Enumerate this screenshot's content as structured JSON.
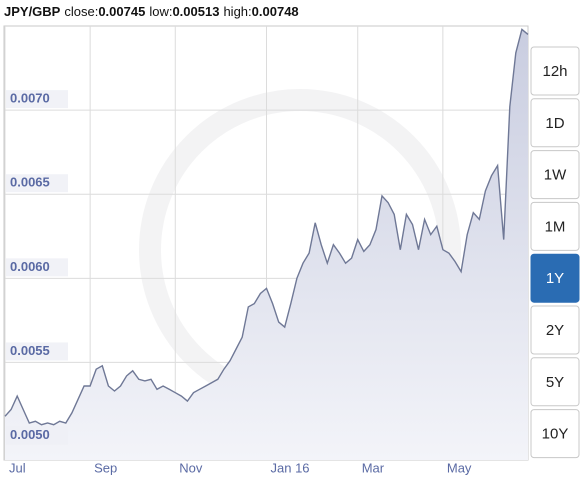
{
  "chart_data": {
    "type": "area",
    "title": "JPY/GBP",
    "stats": [
      {
        "label": "close:",
        "value": 0.00745
      },
      {
        "label": "low:",
        "value": 0.00513
      },
      {
        "label": "high:",
        "value": 0.00748
      }
    ],
    "categories": [
      "Jul",
      null,
      null,
      null,
      null,
      null,
      null,
      null,
      null,
      null,
      null,
      null,
      null,
      null,
      "Sep",
      null,
      null,
      null,
      null,
      null,
      null,
      null,
      null,
      null,
      null,
      null,
      null,
      null,
      "Nov",
      null,
      null,
      null,
      null,
      null,
      null,
      null,
      null,
      null,
      null,
      null,
      null,
      null,
      null,
      "Jan 16",
      null,
      null,
      null,
      null,
      null,
      null,
      null,
      null,
      null,
      null,
      null,
      null,
      null,
      null,
      "Mar",
      null,
      null,
      null,
      null,
      null,
      null,
      null,
      null,
      null,
      null,
      null,
      null,
      null,
      "May",
      null,
      null,
      null,
      null,
      null,
      null,
      null,
      null,
      null,
      null,
      null,
      null,
      null,
      null
    ],
    "values": [
      0.00518,
      0.00522,
      0.0053,
      0.00522,
      0.00514,
      0.00515,
      0.00513,
      0.00514,
      0.00513,
      0.00515,
      0.00514,
      0.0052,
      0.00528,
      0.00536,
      0.00536,
      0.00546,
      0.00548,
      0.00536,
      0.00533,
      0.00536,
      0.00542,
      0.00545,
      0.0054,
      0.00539,
      0.0054,
      0.00534,
      0.00536,
      0.00534,
      0.00532,
      0.0053,
      0.00527,
      0.00532,
      0.00534,
      0.00536,
      0.00538,
      0.0054,
      0.00546,
      0.00551,
      0.00558,
      0.00565,
      0.00583,
      0.00585,
      0.00591,
      0.00594,
      0.00585,
      0.00574,
      0.00571,
      0.00585,
      0.006,
      0.00609,
      0.00615,
      0.00633,
      0.0062,
      0.00609,
      0.0062,
      0.00615,
      0.00609,
      0.00612,
      0.00623,
      0.00616,
      0.0062,
      0.00629,
      0.00649,
      0.00645,
      0.00638,
      0.00617,
      0.00638,
      0.00632,
      0.00617,
      0.00635,
      0.00626,
      0.00631,
      0.00617,
      0.00615,
      0.0061,
      0.00604,
      0.00626,
      0.00639,
      0.00635,
      0.00652,
      0.00661,
      0.00667,
      0.00623,
      0.00702,
      0.00734,
      0.00748,
      0.00745
    ],
    "color": "#6f7896",
    "fill": "#dfe1ee",
    "ylim": [
      0.00492,
      0.0075
    ],
    "yticks": [
      {
        "value": 0.005,
        "label": "0.0050"
      },
      0.0055,
      {
        "value": 0.006,
        "label": "0.0060"
      },
      0.0065,
      {
        "value": 0.007,
        "label": "0.0070"
      }
    ],
    "grid": true,
    "range_buttons": [
      "12h",
      "1D",
      "1W",
      "1M",
      "1Y",
      "2Y",
      "5Y",
      "10Y"
    ],
    "selected": "1Y"
  }
}
